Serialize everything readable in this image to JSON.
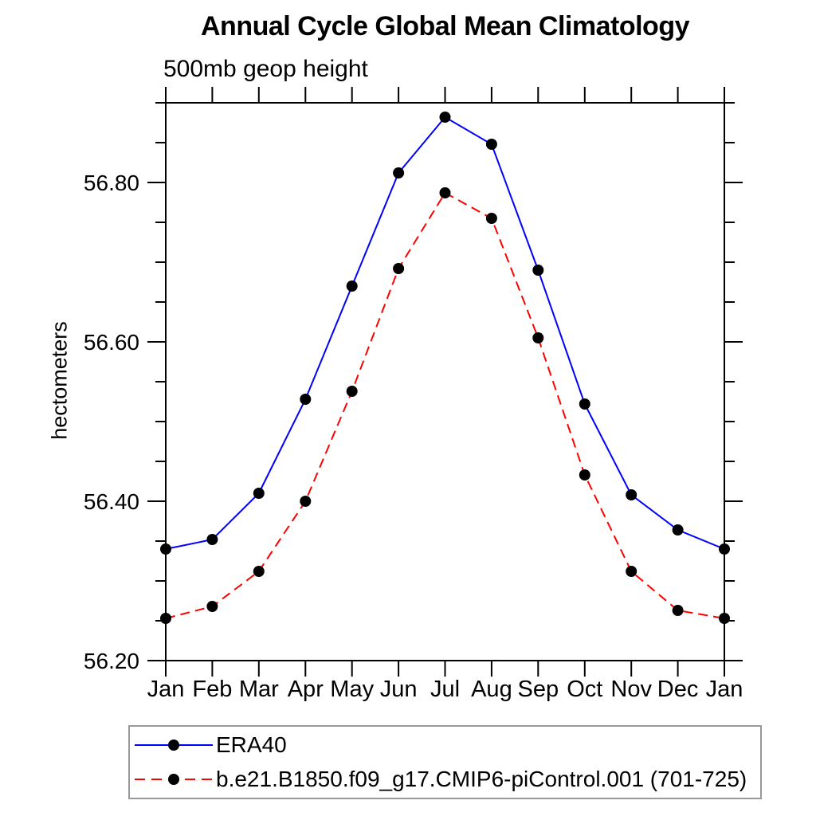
{
  "header": {
    "title": "Annual Cycle Global Mean Climatology",
    "subtitle": "500mb geop height"
  },
  "chart_data": {
    "type": "line",
    "title": "Annual Cycle Global Mean Climatology",
    "subtitle": "500mb geop height",
    "xlabel": "",
    "ylabel": "hectometers",
    "x_categories": [
      "Jan",
      "Feb",
      "Mar",
      "Apr",
      "May",
      "Jun",
      "Jul",
      "Aug",
      "Sep",
      "Oct",
      "Nov",
      "Dec",
      "Jan"
    ],
    "ylim": [
      56.2,
      56.9
    ],
    "y_major_ticks": [
      56.2,
      56.4,
      56.6,
      56.8
    ],
    "y_minor_step": 0.05,
    "grid": false,
    "frame": "full box with outward ticks",
    "legend_position": "bottom-left boxed",
    "marker_color": "#000000",
    "series": [
      {
        "name": "ERA40",
        "color": "#0000ff",
        "line_style": "solid",
        "marker": "filled-circle",
        "values": [
          56.34,
          56.352,
          56.41,
          56.528,
          56.67,
          56.812,
          56.882,
          56.848,
          56.69,
          56.522,
          56.408,
          56.364,
          56.34
        ]
      },
      {
        "name": "b.e21.B1850.f09_g17.CMIP6-piControl.001 (701-725)",
        "color": "#ff0000",
        "line_style": "dashed",
        "marker": "filled-circle",
        "values": [
          56.253,
          56.268,
          56.312,
          56.4,
          56.538,
          56.692,
          56.787,
          56.755,
          56.605,
          56.433,
          56.312,
          56.263,
          56.253
        ]
      }
    ]
  }
}
